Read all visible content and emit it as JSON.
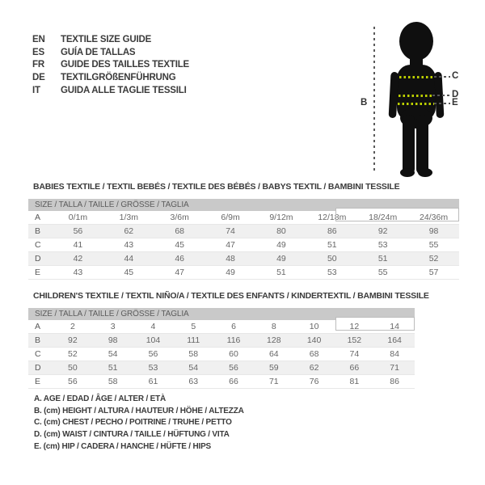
{
  "languages": [
    {
      "code": "EN",
      "label": "TEXTILE SIZE GUIDE"
    },
    {
      "code": "ES",
      "label": "GUÍA DE TALLAS"
    },
    {
      "code": "FR",
      "label": "GUIDE DES TAILLES TEXTILE"
    },
    {
      "code": "DE",
      "label": "TEXTILGRÖßENFÜHRUNG"
    },
    {
      "code": "IT",
      "label": "GUIDA ALLE TAGLIE TESSILI"
    }
  ],
  "figure": {
    "labels": {
      "height": "B",
      "chest": "C",
      "waist": "D",
      "hip": "E"
    },
    "dot_color": "#bdd000",
    "dash_color": "#555555",
    "silhouette_color": "#0f0f0f"
  },
  "babies_table": {
    "title": "BABIES TEXTILE / TEXTIL BEBÉS / TEXTILE DES BÉBÉS / BABYS TEXTIL  / BAMBINI TESSILE",
    "header": "SIZE / TALLA / TAILLE / GRÖSSE / TAGLIA",
    "rows": [
      {
        "label": "A",
        "values": [
          "0/1m",
          "1/3m",
          "3/6m",
          "6/9m",
          "9/12m",
          "12/18m",
          "18/24m",
          "24/36m"
        ]
      },
      {
        "label": "B",
        "values": [
          "56",
          "62",
          "68",
          "74",
          "80",
          "86",
          "92",
          "98"
        ]
      },
      {
        "label": "C",
        "values": [
          "41",
          "43",
          "45",
          "47",
          "49",
          "51",
          "53",
          "55"
        ]
      },
      {
        "label": "D",
        "values": [
          "42",
          "44",
          "46",
          "48",
          "49",
          "50",
          "51",
          "52"
        ]
      },
      {
        "label": "E",
        "values": [
          "43",
          "45",
          "47",
          "49",
          "51",
          "53",
          "55",
          "57"
        ]
      }
    ]
  },
  "children_table": {
    "title": "CHILDREN'S TEXTILE / TEXTIL NIÑO/A / TEXTILE DES ENFANTS / KINDERTEXTIL / BAMBINI TESSILE",
    "header": "SIZE / TALLA / TAILLE / GRÖSSE / TAGLIA",
    "rows": [
      {
        "label": "A",
        "values": [
          "2",
          "3",
          "4",
          "5",
          "6",
          "8",
          "10",
          "12",
          "14"
        ]
      },
      {
        "label": "B",
        "values": [
          "92",
          "98",
          "104",
          "111",
          "116",
          "128",
          "140",
          "152",
          "164"
        ]
      },
      {
        "label": "C",
        "values": [
          "52",
          "54",
          "56",
          "58",
          "60",
          "64",
          "68",
          "74",
          "84"
        ]
      },
      {
        "label": "D",
        "values": [
          "50",
          "51",
          "53",
          "54",
          "56",
          "59",
          "62",
          "66",
          "71"
        ]
      },
      {
        "label": "E",
        "values": [
          "56",
          "58",
          "61",
          "63",
          "66",
          "71",
          "76",
          "81",
          "86"
        ]
      }
    ]
  },
  "legend": [
    "A. AGE / EDAD / ÂGE / ALTER / ETÀ",
    "B. (cm) HEIGHT / ALTURA / HAUTEUR / HÖHE / ALTEZZA",
    "C. (cm) CHEST / PECHO / POITRINE / TRUHE / PETTO",
    "D. (cm) WAIST / CINTURA / TAILLE / HÜFTUNG / VITA",
    "E. (cm) HIP / CADERA / HANCHE / HÜFTE / HIPS"
  ]
}
